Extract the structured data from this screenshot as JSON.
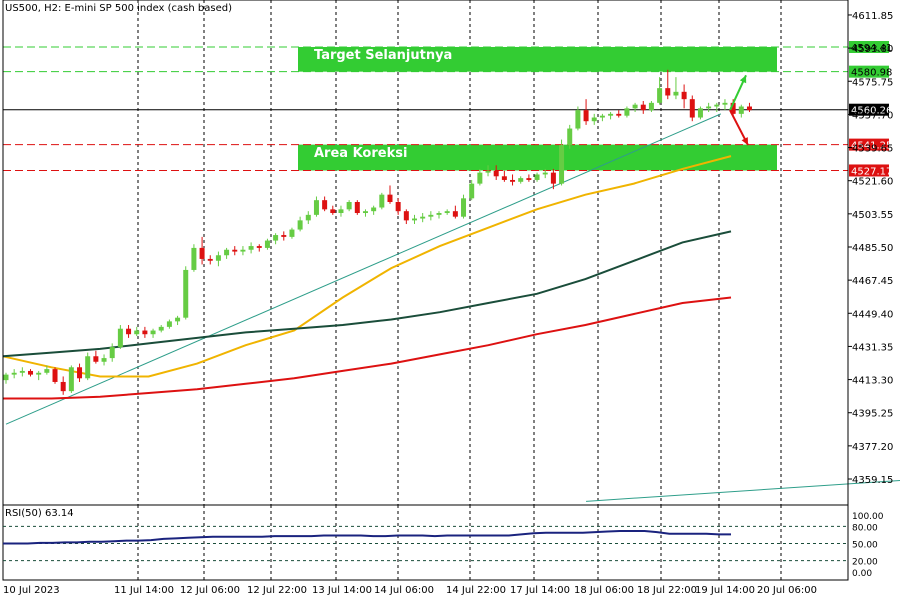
{
  "header": {
    "title": "US500, H2:  E-mini SP 500 index (cash based)"
  },
  "rsi_header": {
    "title": "RSI(50) 63.14"
  },
  "annotations": {
    "target_label": "Target Selanjutnya",
    "correction_label": "Area Koreksi"
  },
  "colors": {
    "bull": "#66cc44",
    "bear": "#dd1111",
    "zone": "#33cc33",
    "ema_fast": "#f0b400",
    "ema_mid": "#1a4d3a",
    "ema_slow": "#dd1111",
    "trendline": "#2e9e8a",
    "rsi": "#1a237e",
    "red_level": "#dd1111",
    "green_level": "#33cc33"
  },
  "chart_data": [
    {
      "type": "candlestick",
      "title": "US500, H2:  E-mini SP 500 index (cash based)",
      "ylim": [
        4345,
        4620
      ],
      "y_ticks": [
        "4611.85",
        "4593.80",
        "4575.75",
        "4557.70",
        "4539.65",
        "4521.60",
        "4503.55",
        "4485.50",
        "4467.45",
        "4449.40",
        "4431.35",
        "4413.30",
        "4395.25",
        "4377.20",
        "4359.15"
      ],
      "x_ticks": [
        "10 Jul 2023",
        "11 Jul 14:00",
        "12 Jul 06:00",
        "12 Jul 22:00",
        "13 Jul 14:00",
        "14 Jul 06:00",
        "14 Jul 22:00",
        "17 Jul 14:00",
        "18 Jul 06:00",
        "18 Jul 22:00",
        "19 Jul 14:00",
        "20 Jul 06:00"
      ],
      "price_labels": [
        {
          "text": "4594.41",
          "value": 4594.41,
          "kind": "green"
        },
        {
          "text": "4580.98",
          "value": 4580.98,
          "kind": "green"
        },
        {
          "text": "4560.26",
          "value": 4560.26,
          "kind": "current"
        },
        {
          "text": "4541.25",
          "value": 4541.25,
          "kind": "red"
        },
        {
          "text": "4527.17",
          "value": 4527.17,
          "kind": "red"
        }
      ],
      "zones": [
        {
          "name": "Target Selanjutnya",
          "from": 4580.98,
          "to": 4594.41
        },
        {
          "name": "Area Koreksi",
          "from": 4527.17,
          "to": 4541.25
        }
      ],
      "candles": [
        [
          4413,
          4417,
          4411,
          4416
        ],
        [
          4416,
          4419,
          4414,
          4417
        ],
        [
          4417,
          4420,
          4415,
          4418
        ],
        [
          4418,
          4419,
          4415,
          4416
        ],
        [
          4416,
          4418,
          4413,
          4417
        ],
        [
          4417,
          4421,
          4416,
          4419
        ],
        [
          4419,
          4420,
          4411,
          4412
        ],
        [
          4412,
          4415,
          4405,
          4407
        ],
        [
          4407,
          4421,
          4406,
          4420
        ],
        [
          4420,
          4422,
          4412,
          4414
        ],
        [
          4414,
          4428,
          4413,
          4426
        ],
        [
          4426,
          4429,
          4422,
          4423
        ],
        [
          4423,
          4427,
          4421,
          4425
        ],
        [
          4425,
          4433,
          4423,
          4431
        ],
        [
          4431,
          4443,
          4430,
          4441
        ],
        [
          4441,
          4443,
          4436,
          4438
        ],
        [
          4438,
          4442,
          4437,
          4440
        ],
        [
          4440,
          4442,
          4436,
          4438
        ],
        [
          4438,
          4441,
          4436,
          4440
        ],
        [
          4440,
          4443,
          4439,
          4442
        ],
        [
          4442,
          4446,
          4441,
          4445
        ],
        [
          4445,
          4448,
          4443,
          4447
        ],
        [
          4447,
          4475,
          4446,
          4473
        ],
        [
          4473,
          4487,
          4472,
          4485
        ],
        [
          4485,
          4491,
          4476,
          4479
        ],
        [
          4479,
          4481,
          4476,
          4478
        ],
        [
          4478,
          4483,
          4475,
          4481
        ],
        [
          4481,
          4485,
          4479,
          4484
        ],
        [
          4484,
          4486,
          4481,
          4483
        ],
        [
          4483,
          4486,
          4481,
          4484
        ],
        [
          4484,
          4488,
          4482,
          4486
        ],
        [
          4486,
          4487,
          4483,
          4485
        ],
        [
          4485,
          4490,
          4484,
          4489
        ],
        [
          4489,
          4493,
          4487,
          4492
        ],
        [
          4492,
          4494,
          4489,
          4491
        ],
        [
          4491,
          4496,
          4490,
          4495
        ],
        [
          4495,
          4502,
          4494,
          4500
        ],
        [
          4500,
          4505,
          4498,
          4503
        ],
        [
          4503,
          4513,
          4502,
          4511
        ],
        [
          4511,
          4513,
          4505,
          4506
        ],
        [
          4506,
          4508,
          4503,
          4504
        ],
        [
          4504,
          4508,
          4502,
          4506
        ],
        [
          4506,
          4511,
          4505,
          4510
        ],
        [
          4510,
          4511,
          4503,
          4504
        ],
        [
          4504,
          4506,
          4502,
          4505
        ],
        [
          4505,
          4508,
          4503,
          4507
        ],
        [
          4507,
          4515,
          4506,
          4514
        ],
        [
          4514,
          4519,
          4509,
          4510
        ],
        [
          4510,
          4512,
          4503,
          4505
        ],
        [
          4505,
          4506,
          4498,
          4500
        ],
        [
          4500,
          4503,
          4498,
          4501
        ],
        [
          4501,
          4504,
          4499,
          4502
        ],
        [
          4502,
          4505,
          4500,
          4503
        ],
        [
          4503,
          4505,
          4501,
          4504
        ],
        [
          4504,
          4506,
          4503,
          4505
        ],
        [
          4505,
          4508,
          4501,
          4502
        ],
        [
          4502,
          4514,
          4501,
          4512
        ],
        [
          4512,
          4522,
          4511,
          4520
        ],
        [
          4520,
          4528,
          4519,
          4526
        ],
        [
          4526,
          4530,
          4524,
          4527
        ],
        [
          4527,
          4530,
          4522,
          4524
        ],
        [
          4524,
          4527,
          4521,
          4522
        ],
        [
          4522,
          4525,
          4519,
          4521
        ],
        [
          4521,
          4524,
          4520,
          4523
        ],
        [
          4523,
          4525,
          4521,
          4522
        ],
        [
          4522,
          4526,
          4521,
          4525
        ],
        [
          4525,
          4528,
          4523,
          4526
        ],
        [
          4526,
          4528,
          4517,
          4520
        ],
        [
          4520,
          4544,
          4519,
          4541
        ],
        [
          4541,
          4552,
          4539,
          4550
        ],
        [
          4550,
          4562,
          4549,
          4560
        ],
        [
          4560,
          4566,
          4552,
          4554
        ],
        [
          4554,
          4558,
          4552,
          4556
        ],
        [
          4556,
          4558,
          4554,
          4557
        ],
        [
          4557,
          4559,
          4555,
          4558
        ],
        [
          4558,
          4560,
          4556,
          4557
        ],
        [
          4557,
          4562,
          4556,
          4561
        ],
        [
          4561,
          4564,
          4559,
          4563
        ],
        [
          4563,
          4565,
          4558,
          4560
        ],
        [
          4560,
          4565,
          4559,
          4564
        ],
        [
          4564,
          4578,
          4563,
          4572
        ],
        [
          4572,
          4582,
          4566,
          4568
        ],
        [
          4568,
          4578,
          4566,
          4570
        ],
        [
          4570,
          4574,
          4561,
          4566
        ],
        [
          4566,
          4568,
          4554,
          4556
        ],
        [
          4556,
          4562,
          4555,
          4561
        ],
        [
          4561,
          4564,
          4559,
          4562
        ],
        [
          4562,
          4564,
          4559,
          4563
        ],
        [
          4563,
          4566,
          4560,
          4564
        ],
        [
          4564,
          4566,
          4556,
          4558
        ],
        [
          4558,
          4563,
          4556,
          4562
        ],
        [
          4562,
          4564,
          4559,
          4560
        ]
      ],
      "series": [
        {
          "name": "ema_fast",
          "color": "#f0b400",
          "values": [
            4426,
            4420,
            4415,
            4415,
            4422,
            4432,
            4440,
            4458,
            4474,
            4486,
            4496,
            4506,
            4514,
            4520,
            4528,
            4535
          ]
        },
        {
          "name": "ema_mid",
          "color": "#1a4d3a",
          "values": [
            4426,
            4428,
            4430,
            4433,
            4436,
            4439,
            4441,
            4443,
            4446,
            4450,
            4455,
            4460,
            4468,
            4478,
            4488,
            4494
          ]
        },
        {
          "name": "ema_slow",
          "color": "#dd1111",
          "values": [
            4403,
            4403,
            4404,
            4406,
            4408,
            4411,
            4414,
            4418,
            4422,
            4427,
            4432,
            4438,
            4443,
            4449,
            4455,
            4458
          ]
        }
      ],
      "trendlines": [
        {
          "from": [
            0,
            4389
          ],
          "to": [
            87.5,
            4558
          ],
          "color": "#2e9e8a"
        },
        {
          "from": [
            71,
            4347
          ],
          "to": [
            115,
            4360
          ],
          "color": "#2e9e8a"
        }
      ],
      "arrows": [
        {
          "direction": "up",
          "color": "#33cc33",
          "from_value": 4560,
          "to_value": 4579
        },
        {
          "direction": "down",
          "color": "#dd1111",
          "from_value": 4560,
          "to_value": 4541
        }
      ]
    },
    {
      "type": "line",
      "title": "RSI(50) 63.14",
      "ylim": [
        0,
        100
      ],
      "y_ticks": [
        "100.00",
        "80.00",
        "50.00",
        "20.00",
        "0.00"
      ],
      "levels": [
        80,
        50,
        20
      ],
      "series": [
        {
          "name": "RSI(50)",
          "values": [
            50,
            50,
            50,
            51,
            51,
            52,
            52,
            53,
            53,
            54,
            55,
            55,
            56,
            58,
            59,
            60,
            61,
            62,
            62,
            62,
            62,
            62,
            63,
            63,
            63,
            63,
            64,
            64,
            64,
            64,
            63,
            63,
            64,
            64,
            64,
            63,
            64,
            64,
            64,
            64,
            64,
            64,
            66,
            68,
            69,
            69,
            69,
            69,
            70,
            71,
            72,
            72,
            72,
            70,
            67,
            67,
            67,
            67,
            66,
            66
          ]
        }
      ]
    }
  ]
}
